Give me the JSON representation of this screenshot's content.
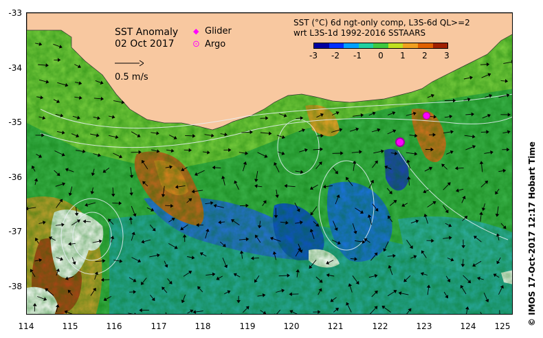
{
  "title_block": {
    "title": "SST Anomaly",
    "date": "02 Oct 2017",
    "scale_label": "0.5 m/s"
  },
  "legend": {
    "glider_label": "Glider",
    "argo_label": "Argo",
    "glider_color": "#ff00ff",
    "argo_color": "#ff00ff"
  },
  "product": {
    "line1": "SST (°C) 6d ngt-only comp, L3S-6d QL>=2",
    "line2": "wrt L3S-1d 1992-2016 SSTAARS"
  },
  "colorbar": {
    "ticks": [
      "-3",
      "-2",
      "-1",
      "0",
      "1",
      "2",
      "3"
    ],
    "colors": [
      "#0000a0",
      "#0030ff",
      "#00a0ff",
      "#20d0a0",
      "#40c840",
      "#c0e020",
      "#f0a020",
      "#e06000",
      "#a02000"
    ]
  },
  "axes": {
    "y_ticks": [
      "-33",
      "-34",
      "-35",
      "-36",
      "-37",
      "-38"
    ],
    "x_ticks": [
      "114",
      "115",
      "116",
      "117",
      "118",
      "119",
      "120",
      "121",
      "122",
      "123",
      "124",
      "125"
    ]
  },
  "credit": "© IMOS 17-Oct-2017 12:17 Hobart Time",
  "map": {
    "land_color": "#f8c8a0",
    "ocean_base": "#40b840"
  }
}
